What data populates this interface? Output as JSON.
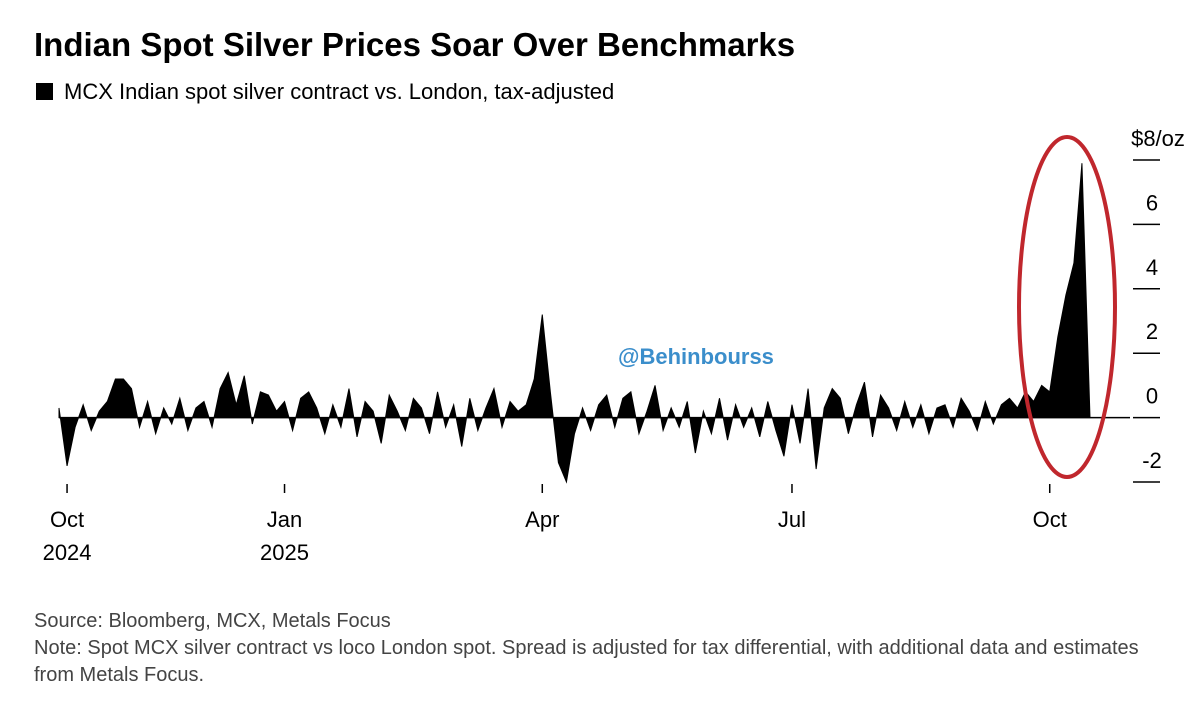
{
  "chart_data": {
    "type": "area",
    "title": "Indian Spot Silver Prices Soar Over Benchmarks",
    "series": [
      {
        "name": "MCX Indian spot silver contract vs. London, tax-adjusted",
        "color": "#000000",
        "values": [
          0.3,
          -1.5,
          -0.3,
          0.4,
          -0.4,
          0.2,
          0.5,
          1.2,
          1.2,
          0.9,
          -0.3,
          0.5,
          -0.5,
          0.3,
          -0.2,
          0.6,
          -0.4,
          0.3,
          0.5,
          -0.3,
          0.9,
          1.4,
          0.4,
          1.3,
          -0.2,
          0.8,
          0.7,
          0.2,
          0.5,
          -0.4,
          0.6,
          0.8,
          0.3,
          -0.5,
          0.4,
          -0.3,
          0.9,
          -0.6,
          0.5,
          0.2,
          -0.8,
          0.7,
          0.2,
          -0.4,
          0.6,
          0.3,
          -0.5,
          0.8,
          -0.3,
          0.4,
          -0.9,
          0.6,
          -0.4,
          0.3,
          0.9,
          -0.3,
          0.5,
          0.2,
          0.4,
          1.2,
          3.2,
          0.8,
          -1.4,
          -2.0,
          -0.5,
          0.3,
          -0.4,
          0.4,
          0.7,
          -0.3,
          0.6,
          0.8,
          -0.5,
          0.2,
          1.0,
          -0.4,
          0.3,
          -0.3,
          0.5,
          -1.1,
          0.2,
          -0.5,
          0.6,
          -0.7,
          0.4,
          -0.3,
          0.3,
          -0.6,
          0.5,
          -0.4,
          -1.2,
          0.4,
          -0.8,
          0.9,
          -1.6,
          0.3,
          0.9,
          0.6,
          -0.5,
          0.4,
          1.1,
          -0.6,
          0.7,
          0.3,
          -0.4,
          0.5,
          -0.3,
          0.4,
          -0.5,
          0.3,
          0.4,
          -0.3,
          0.6,
          0.2,
          -0.4,
          0.5,
          -0.2,
          0.4,
          0.6,
          0.3,
          0.8,
          0.5,
          1.0,
          0.8,
          2.5,
          3.8,
          4.8,
          7.9,
          0
        ]
      }
    ],
    "xlim": [
      0,
      128
    ],
    "xticks": [
      {
        "value": 1,
        "label": "Oct",
        "sublabel": "2024"
      },
      {
        "value": 28,
        "label": "Jan",
        "sublabel": "2025"
      },
      {
        "value": 60,
        "label": "Apr"
      },
      {
        "value": 91,
        "label": "Jul"
      },
      {
        "value": 123,
        "label": "Oct"
      }
    ],
    "ylim": [
      -2,
      8
    ],
    "yticks": [
      -2,
      0,
      2,
      4,
      6,
      {
        "value": 8,
        "label": "$8/oz"
      }
    ],
    "watermark": "@Behinbourss",
    "source": "Source: Bloomberg, MCX, Metals Focus",
    "note": "Note: Spot MCX silver contract vs loco London spot. Spread is adjusted for tax differential, with additional data and estimates from Metals Focus."
  }
}
